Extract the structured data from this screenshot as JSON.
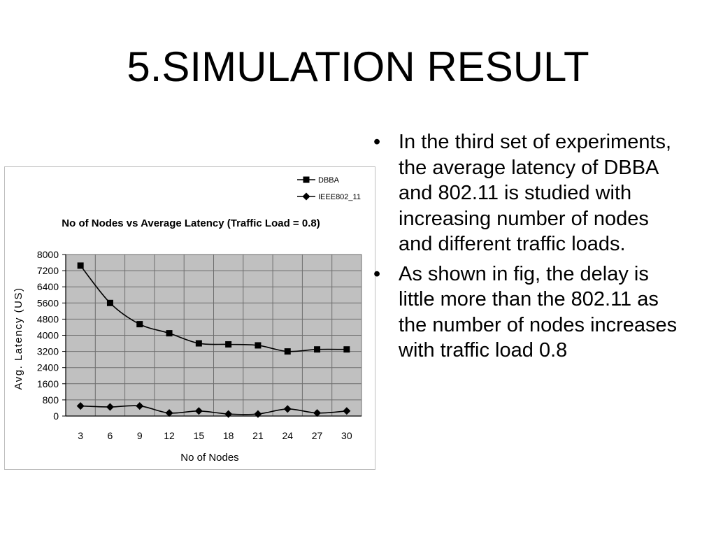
{
  "slide": {
    "title": "5.SIMULATION RESULT",
    "bullet_char": "•",
    "bullets": [
      "In the third set of experiments, the average latency of DBBA and 802.11 is studied with increasing number of nodes and different traffic loads.",
      "As shown in fig, the delay is little more than the 802.11 as the number of nodes increases with traffic load 0.8"
    ]
  },
  "chart_data": {
    "type": "line",
    "title": "No of Nodes vs Average Latency (Traffic Load = 0.8)",
    "xlabel": "No of Nodes",
    "ylabel": "Avg. Latency (US)",
    "x": [
      3,
      6,
      9,
      12,
      15,
      18,
      21,
      24,
      27,
      30
    ],
    "ylim": [
      0,
      8000
    ],
    "yticks": [
      0,
      800,
      1600,
      2400,
      3200,
      4000,
      4800,
      5600,
      6400,
      7200,
      8000
    ],
    "grid": true,
    "legend_position": "top-right",
    "plot_background": "#c0c0c0",
    "series": [
      {
        "name": "DBBA",
        "marker": "square",
        "color": "#000000",
        "values": [
          7450,
          5600,
          4550,
          4100,
          3600,
          3550,
          3500,
          3200,
          3300,
          3300
        ]
      },
      {
        "name": "IEEE802_11",
        "marker": "diamond",
        "color": "#000000",
        "values": [
          500,
          450,
          500,
          150,
          250,
          100,
          100,
          350,
          150,
          250
        ]
      }
    ]
  }
}
